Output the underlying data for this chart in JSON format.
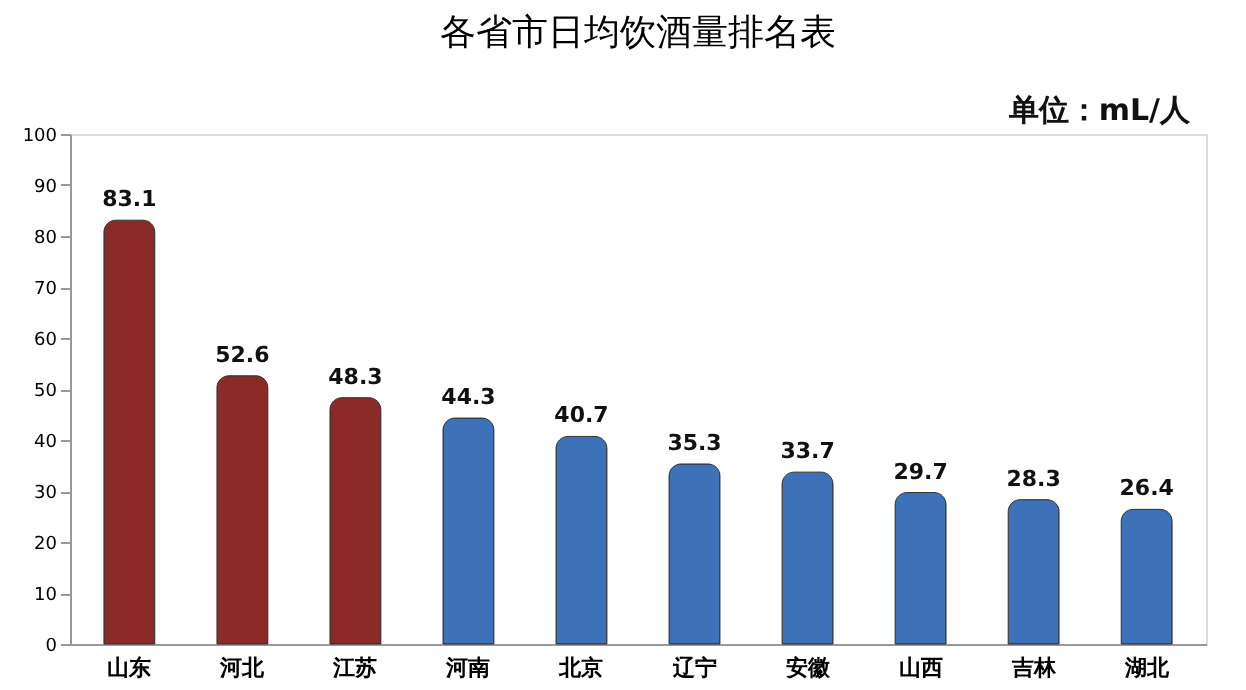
{
  "chart_data": {
    "type": "bar",
    "title": "各省市日均饮酒量排名表",
    "categories": [
      "山东",
      "河北",
      "江苏",
      "河南",
      "北京",
      "辽宁",
      "安徽",
      "山西",
      "吉林",
      "湖北"
    ],
    "values": [
      83.1,
      52.6,
      48.3,
      44.3,
      40.7,
      35.3,
      33.7,
      29.7,
      28.3,
      26.4
    ],
    "colors": [
      "#8b2b28",
      "#8b2b28",
      "#8b2b28",
      "#3d72b8",
      "#3d72b8",
      "#3d72b8",
      "#3d72b8",
      "#3d72b8",
      "#3d72b8",
      "#3d72b8"
    ],
    "ylim": [
      0,
      100
    ],
    "yticks": [
      0,
      10,
      20,
      30,
      40,
      50,
      60,
      70,
      80,
      90,
      100
    ],
    "grid": false,
    "data_labels": true,
    "annotations": [
      "单位：mL/人"
    ]
  }
}
